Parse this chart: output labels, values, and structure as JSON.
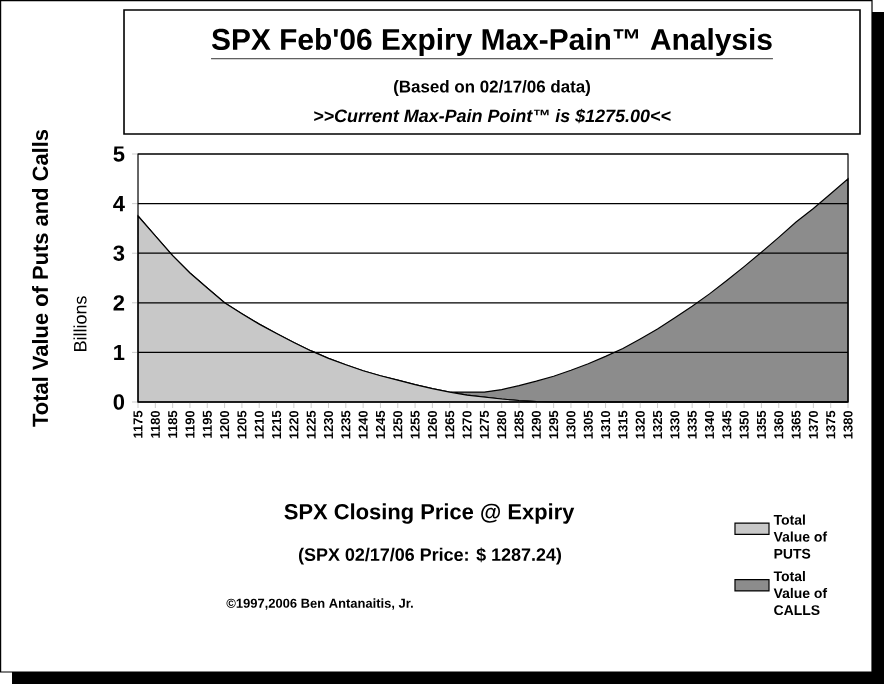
{
  "chart_data": {
    "type": "area",
    "title": "SPX Feb'06 Expiry Max-Pain™ Analysis",
    "subtitle": "(Based on 02/17/06 data)",
    "xlabel": "SPX Closing Price @ Expiry",
    "ylabel": "Total Value of Puts and Calls",
    "annotations": [
      ">>Current Max-Pain Point™ is $1275.00<<",
      "Billions",
      "(SPX 02/17/06 Price: $ 1287.24)",
      "©1997,2006 Ben Antanaitis, Jr."
    ],
    "categories": [
      "1175",
      "1180",
      "1185",
      "1190",
      "1195",
      "1200",
      "1205",
      "1210",
      "1215",
      "1220",
      "1225",
      "1230",
      "1235",
      "1240",
      "1245",
      "1250",
      "1255",
      "1260",
      "1265",
      "1270",
      "1275",
      "1280",
      "1285",
      "1290",
      "1295",
      "1300",
      "1305",
      "1310",
      "1315",
      "1320",
      "1325",
      "1330",
      "1335",
      "1340",
      "1345",
      "1350",
      "1355",
      "1360",
      "1365",
      "1370",
      "1375",
      "1380"
    ],
    "series": [
      {
        "name": "Total Value of PUTS",
        "color": "#c8c8c8",
        "values": [
          3.75,
          3.35,
          2.95,
          2.6,
          2.3,
          2.0,
          1.78,
          1.57,
          1.38,
          1.2,
          1.03,
          0.88,
          0.75,
          0.63,
          0.53,
          0.44,
          0.35,
          0.27,
          0.2,
          0.14,
          0.1,
          0.06,
          0.03,
          0.01,
          0,
          0,
          0,
          0,
          0,
          0,
          0,
          0,
          0,
          0,
          0,
          0,
          0,
          0,
          0,
          0,
          0,
          0
        ]
      },
      {
        "name": "Total Value of CALLS",
        "color": "#8c8c8c",
        "values": [
          0,
          0,
          0,
          0,
          0,
          0,
          0,
          0,
          0,
          0,
          0,
          0,
          0,
          0,
          0,
          0,
          0,
          0,
          0,
          0.06,
          0.1,
          0.19,
          0.3,
          0.41,
          0.52,
          0.64,
          0.77,
          0.92,
          1.08,
          1.27,
          1.47,
          1.7,
          1.93,
          2.18,
          2.45,
          2.73,
          3.02,
          3.32,
          3.63,
          3.9,
          4.2,
          4.5
        ]
      }
    ],
    "ylim": [
      0,
      5
    ],
    "yticks": [
      0,
      1,
      2,
      3,
      4,
      5
    ],
    "grid": "y",
    "stacked": true,
    "legend": "bottom right"
  }
}
